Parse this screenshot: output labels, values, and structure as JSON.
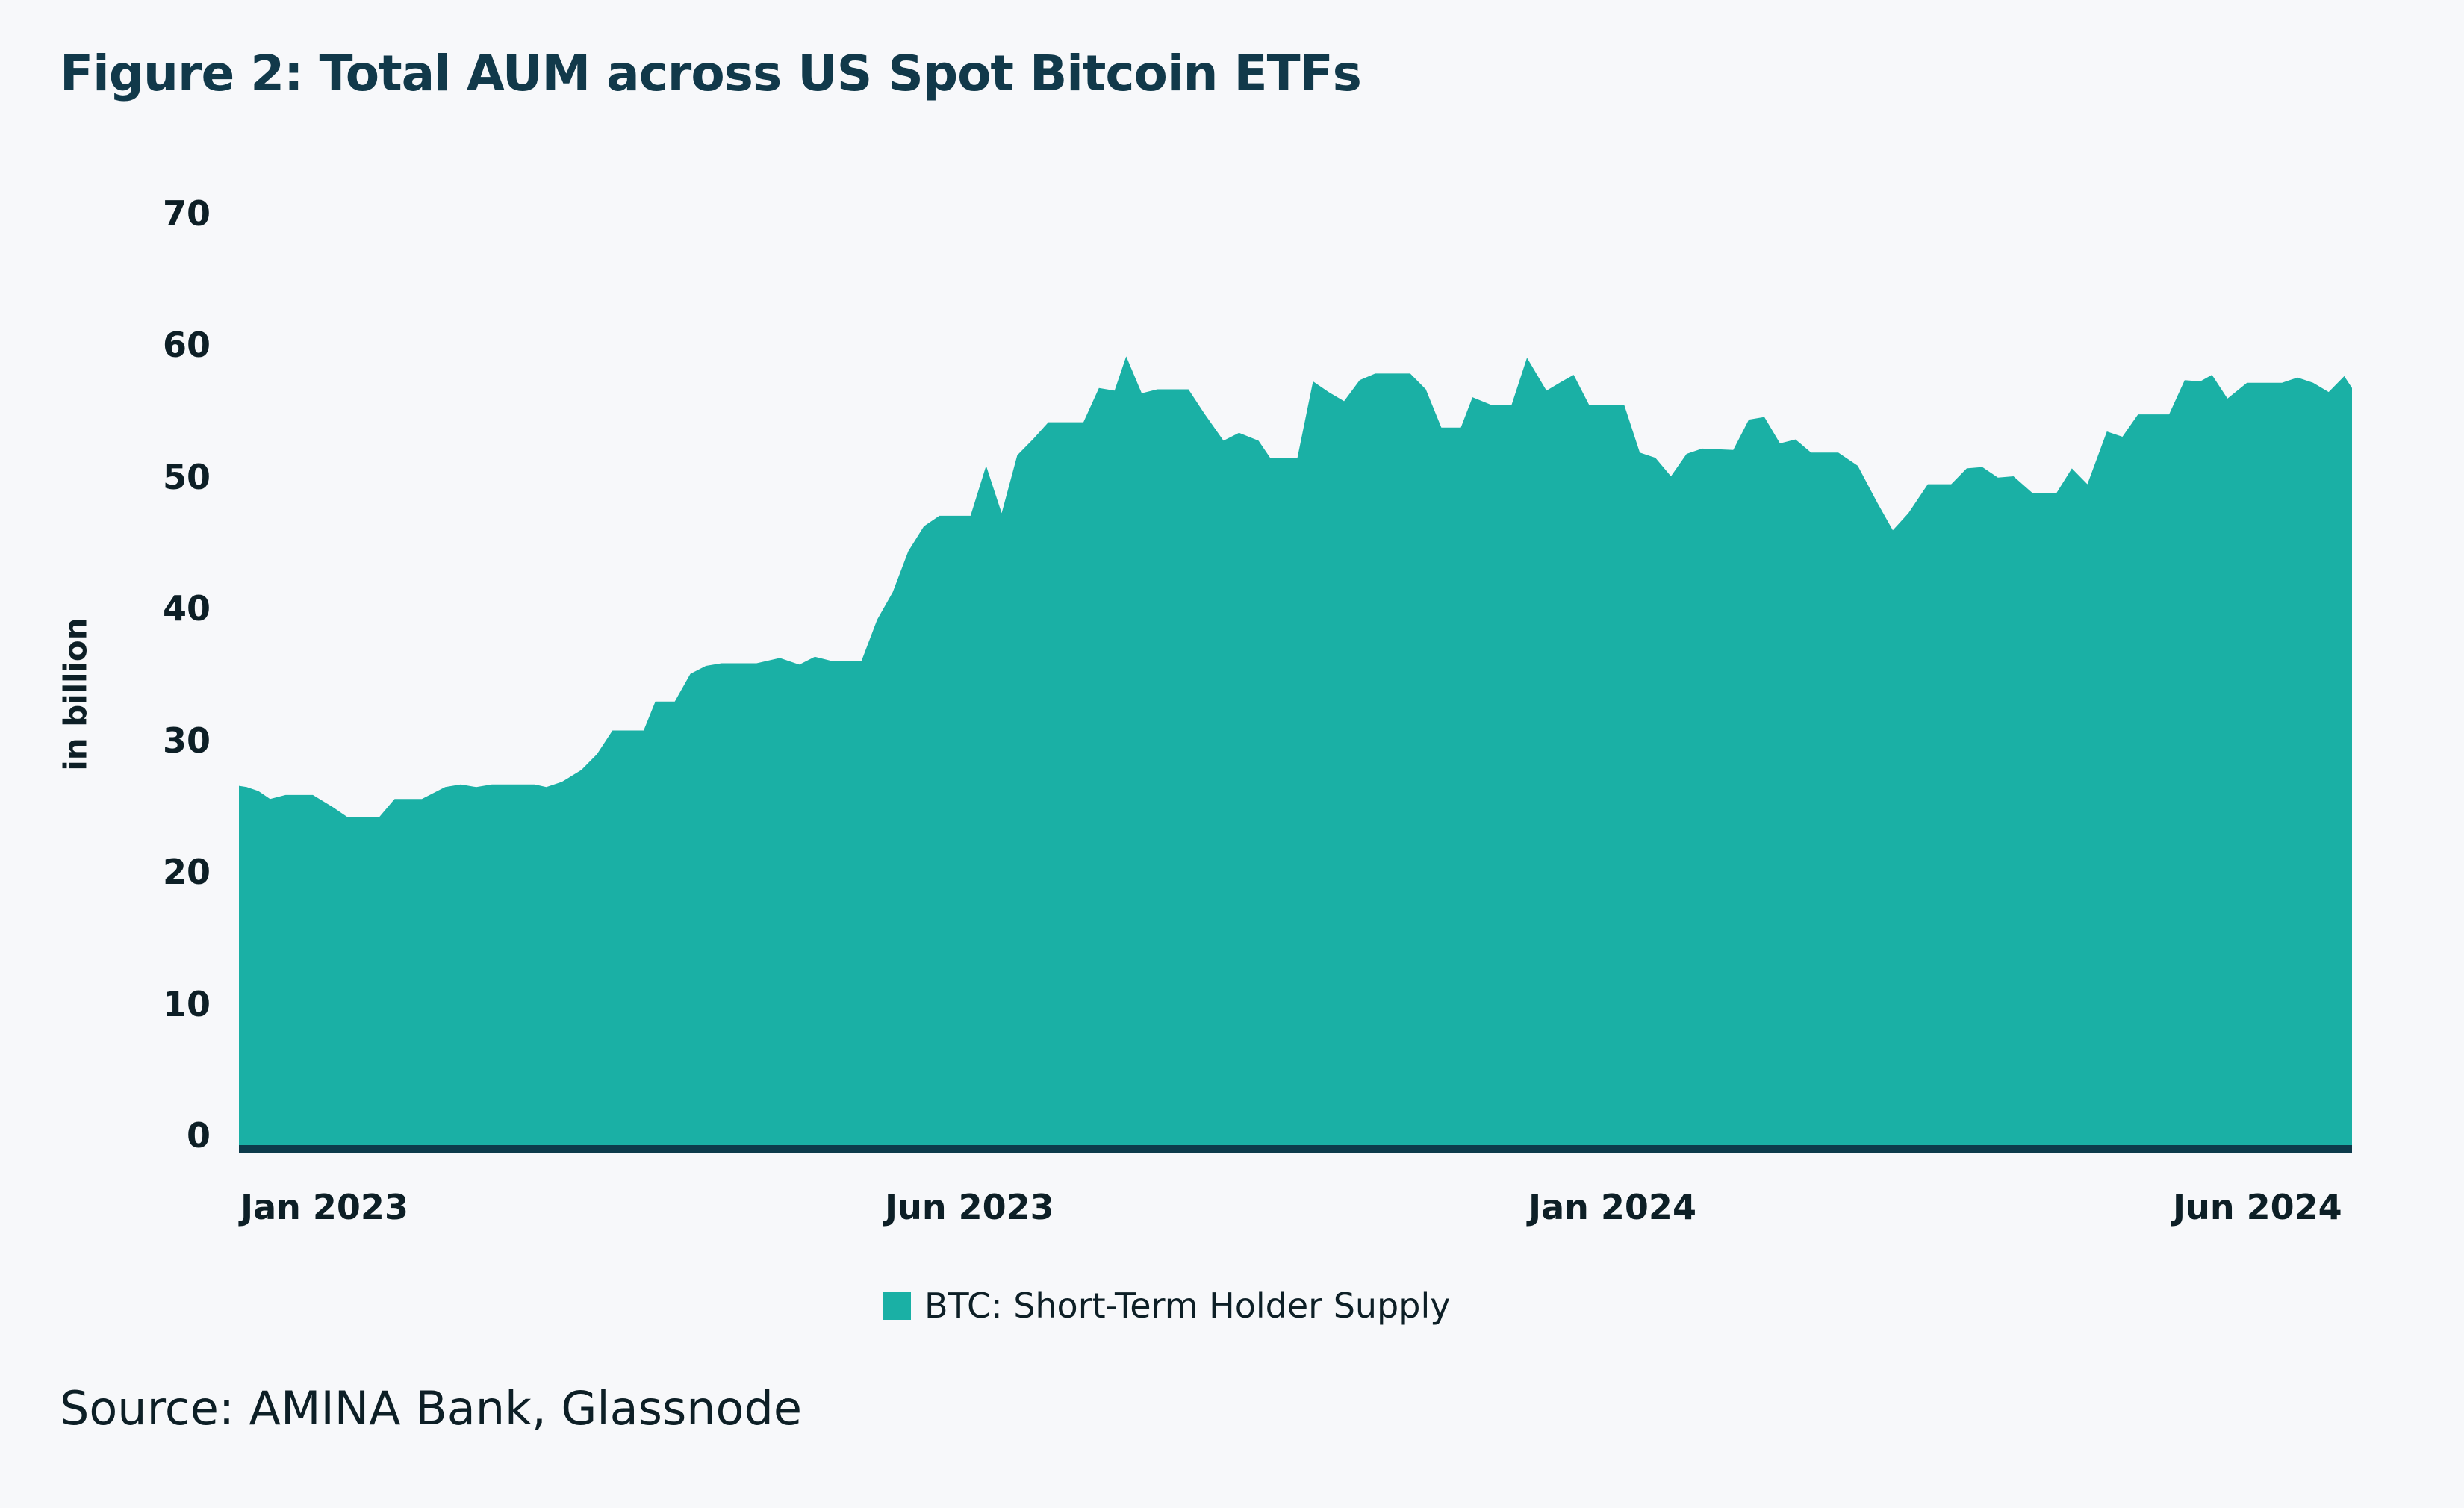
{
  "title": "Figure 2: Total AUM across US Spot Bitcoin ETFs",
  "source": "Source: AMINA Bank, Glassnode",
  "colors": {
    "area": "#1ab0a5",
    "baseline": "#0d3b4b",
    "background": "#f7f8fa",
    "title": "#11394a"
  },
  "chart_data": {
    "type": "area",
    "title": "Figure 2: Total AUM across US Spot Bitcoin ETFs",
    "xlabel": "",
    "ylabel": "in billion",
    "ylim": [
      0,
      70
    ],
    "yticks": [
      "0",
      "10",
      "20",
      "30",
      "40",
      "50",
      "60",
      "70"
    ],
    "xticks": [
      "Jan 2023",
      "Jun 2023",
      "Jan 2024",
      "Jun 2024"
    ],
    "grid": false,
    "legend": "bottom-center",
    "series": [
      {
        "name": "BTC: Short-Term Holder Supply",
        "x": [
          "2023-01-01",
          "2023-01-03",
          "2023-01-06",
          "2023-01-09",
          "2023-01-13",
          "2023-01-20",
          "2023-01-25",
          "2023-01-29",
          "2023-02-06",
          "2023-02-10",
          "2023-02-17",
          "2023-02-23",
          "2023-02-27",
          "2023-03-03",
          "2023-03-07",
          "2023-03-18",
          "2023-03-21",
          "2023-03-25",
          "2023-03-30",
          "2023-04-03",
          "2023-04-07",
          "2023-04-15",
          "2023-04-18",
          "2023-04-23",
          "2023-04-27",
          "2023-05-01",
          "2023-05-05",
          "2023-05-14",
          "2023-05-20",
          "2023-05-25",
          "2023-05-29",
          "2023-06-02",
          "2023-06-10",
          "2023-06-14",
          "2023-06-18",
          "2023-06-22",
          "2023-06-26",
          "2023-06-30",
          "2023-07-08",
          "2023-07-12",
          "2023-07-16",
          "2023-07-20",
          "2023-07-24",
          "2023-07-28",
          "2023-08-06",
          "2023-08-10",
          "2023-08-14",
          "2023-08-17",
          "2023-08-21",
          "2023-08-25",
          "2023-09-02",
          "2023-09-06",
          "2023-09-11",
          "2023-09-15",
          "2023-09-20",
          "2023-09-23",
          "2023-09-30",
          "2023-10-04",
          "2023-10-08",
          "2023-10-12",
          "2023-10-16",
          "2023-10-20",
          "2023-10-29",
          "2023-11-02",
          "2023-11-06",
          "2023-11-11",
          "2023-11-14",
          "2023-11-19",
          "2023-11-24",
          "2023-11-28",
          "2023-12-03",
          "2023-12-07",
          "2023-12-10",
          "2023-12-14",
          "2023-12-23",
          "2023-12-27",
          "2023-12-31",
          "2024-01-04",
          "2024-01-08",
          "2024-01-12",
          "2024-01-20",
          "2024-01-24",
          "2024-01-28",
          "2024-02-01",
          "2024-02-05",
          "2024-02-09",
          "2024-02-16",
          "2024-02-21",
          "2024-02-26",
          "2024-03-01",
          "2024-03-05",
          "2024-03-10",
          "2024-03-16",
          "2024-03-20",
          "2024-03-24",
          "2024-03-28",
          "2024-04-01",
          "2024-04-06",
          "2024-04-12",
          "2024-04-16",
          "2024-04-20",
          "2024-04-25",
          "2024-04-29",
          "2024-05-03",
          "2024-05-11",
          "2024-05-15",
          "2024-05-19",
          "2024-05-22",
          "2024-05-26",
          "2024-05-31",
          "2024-06-09",
          "2024-06-13",
          "2024-06-17",
          "2024-06-21",
          "2024-06-25",
          "2024-06-27"
        ],
        "values": [
          27.4,
          27.3,
          27.0,
          26.4,
          26.7,
          26.7,
          25.8,
          25.0,
          25.0,
          26.4,
          26.4,
          27.3,
          27.5,
          27.3,
          27.5,
          27.5,
          27.3,
          27.7,
          28.6,
          29.8,
          31.6,
          31.6,
          33.8,
          33.8,
          35.9,
          36.5,
          36.7,
          36.7,
          37.1,
          36.6,
          37.2,
          36.9,
          36.9,
          40.0,
          42.1,
          45.2,
          47.1,
          47.9,
          47.9,
          51.7,
          48.1,
          52.5,
          53.7,
          55.0,
          55.0,
          57.6,
          57.4,
          60.0,
          57.2,
          57.5,
          57.5,
          55.7,
          53.6,
          54.2,
          53.6,
          52.3,
          52.3,
          58.1,
          57.3,
          56.6,
          58.2,
          58.7,
          58.7,
          57.5,
          54.6,
          54.6,
          56.9,
          56.3,
          56.3,
          59.9,
          57.4,
          58.1,
          58.6,
          56.3,
          56.3,
          52.7,
          52.3,
          50.9,
          52.6,
          53.0,
          52.9,
          55.2,
          55.4,
          53.4,
          53.7,
          52.7,
          52.7,
          51.7,
          48.9,
          46.8,
          48.1,
          50.3,
          50.3,
          51.5,
          51.6,
          50.8,
          50.9,
          49.6,
          49.6,
          51.5,
          50.3,
          54.3,
          53.9,
          55.6,
          55.6,
          58.2,
          58.1,
          58.6,
          56.8,
          58.0,
          58.0,
          58.4,
          58.0,
          57.3,
          58.5,
          57.6
        ]
      }
    ]
  }
}
